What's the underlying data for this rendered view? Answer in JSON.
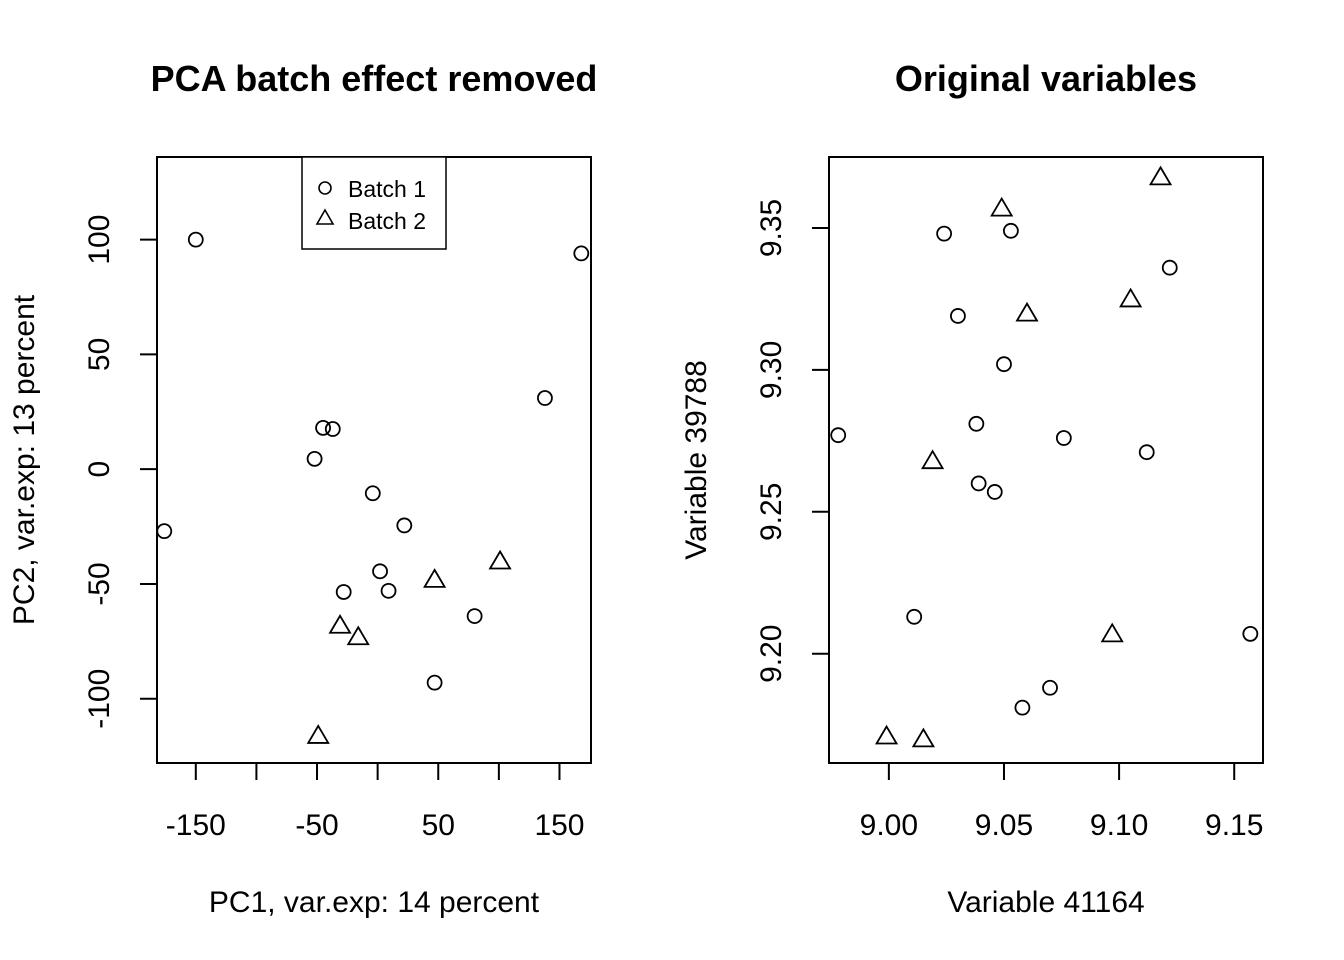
{
  "chart_data": [
    {
      "type": "scatter",
      "title": "PCA batch effect removed",
      "xlabel": "PC1, var.exp: 14 percent",
      "ylabel": "PC2, var.exp: 13 percent",
      "xlim": [
        -182,
        176
      ],
      "ylim": [
        -128,
        136
      ],
      "xticks": [
        -150,
        -100,
        -50,
        0,
        50,
        100,
        150
      ],
      "xtick_labels": [
        "-150",
        "",
        "-50",
        "",
        "50",
        "",
        "150"
      ],
      "yticks": [
        -100,
        -50,
        0,
        50,
        100
      ],
      "ytick_labels": [
        "-100",
        "-50",
        "0",
        "50",
        "100"
      ],
      "grid": false,
      "legend": {
        "position": "top-center",
        "entries": [
          {
            "label": "Batch 1",
            "marker": "circle"
          },
          {
            "label": "Batch 2",
            "marker": "triangle"
          }
        ]
      },
      "series": [
        {
          "name": "Batch 1",
          "marker": "circle",
          "points": [
            [
              -150,
              100
            ],
            [
              168,
              94
            ],
            [
              -45,
              18
            ],
            [
              -37,
              17.5
            ],
            [
              -52,
              4.5
            ],
            [
              138,
              31
            ],
            [
              -176,
              -27
            ],
            [
              -4,
              -10.5
            ],
            [
              22,
              -24.5
            ],
            [
              2,
              -44.5
            ],
            [
              -28,
              -53.5
            ],
            [
              9,
              -53
            ],
            [
              80,
              -64
            ],
            [
              47,
              -93
            ]
          ]
        },
        {
          "name": "Batch 2",
          "marker": "triangle",
          "points": [
            [
              47,
              -48
            ],
            [
              101,
              -40
            ],
            [
              -31,
              -68
            ],
            [
              -16,
              -73
            ],
            [
              -49,
              -116
            ]
          ]
        }
      ]
    },
    {
      "type": "scatter",
      "title": "Original variables",
      "xlabel": "Variable 41164",
      "ylabel": "Variable 39788",
      "xlim": [
        8.974,
        9.1625
      ],
      "ylim": [
        9.1615,
        9.375
      ],
      "xticks": [
        9.0,
        9.05,
        9.1,
        9.15
      ],
      "xtick_labels": [
        "9.00",
        "9.05",
        "9.10",
        "9.15"
      ],
      "yticks": [
        9.2,
        9.25,
        9.3,
        9.35
      ],
      "ytick_labels": [
        "9.20",
        "9.25",
        "9.30",
        "9.35"
      ],
      "grid": false,
      "series": [
        {
          "name": "Batch 1",
          "marker": "circle",
          "points": [
            [
              8.978,
              9.277
            ],
            [
              9.024,
              9.348
            ],
            [
              9.053,
              9.349
            ],
            [
              9.03,
              9.319
            ],
            [
              9.05,
              9.302
            ],
            [
              9.038,
              9.281
            ],
            [
              9.076,
              9.276
            ],
            [
              9.122,
              9.336
            ],
            [
              9.112,
              9.271
            ],
            [
              9.039,
              9.26
            ],
            [
              9.046,
              9.257
            ],
            [
              9.011,
              9.213
            ],
            [
              9.157,
              9.207
            ],
            [
              9.07,
              9.188
            ],
            [
              9.058,
              9.181
            ]
          ]
        },
        {
          "name": "Batch 2",
          "marker": "triangle",
          "points": [
            [
              9.118,
              9.368
            ],
            [
              9.049,
              9.357
            ],
            [
              9.105,
              9.325
            ],
            [
              9.06,
              9.32
            ],
            [
              9.019,
              9.268
            ],
            [
              9.097,
              9.207
            ],
            [
              8.999,
              9.171
            ],
            [
              9.015,
              9.17
            ]
          ]
        }
      ]
    }
  ]
}
